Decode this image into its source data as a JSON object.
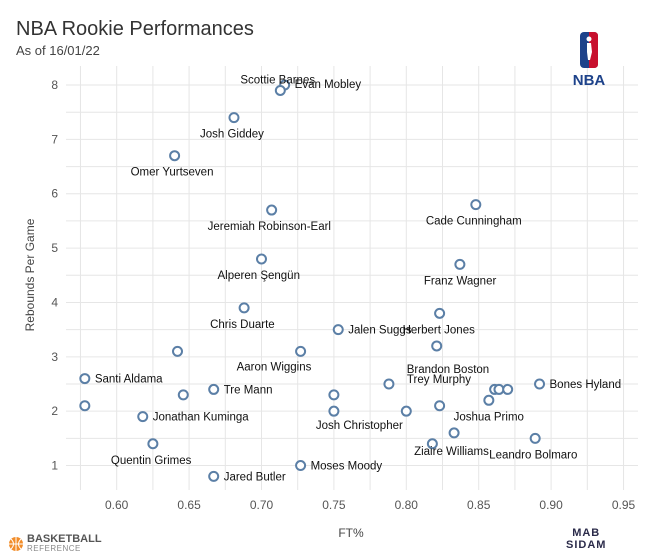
{
  "header": {
    "title": "NBA Rookie Performances",
    "subtitle": "As of 16/01/22"
  },
  "logos": {
    "nba": "NBA",
    "bbref_line1": "BASKETBALL",
    "bbref_line2": "REFERENCE",
    "credit_line1": "MAB",
    "credit_line2": "SIDAM"
  },
  "colors": {
    "marker_stroke": "#5b7fa6",
    "nba_blue": "#1d428a",
    "nba_red": "#c8102e",
    "bbref_orange": "#f28c28"
  },
  "chart_data": {
    "type": "scatter",
    "xlabel": "FT%",
    "ylabel": "Rebounds Per Game",
    "xlim": [
      0.565,
      0.96
    ],
    "ylim": [
      0.55,
      8.35
    ],
    "xticks": [
      "0.60",
      "0.65",
      "0.70",
      "0.75",
      "0.80",
      "0.85",
      "0.90",
      "0.95"
    ],
    "yticks": [
      "1",
      "2",
      "3",
      "4",
      "5",
      "6",
      "7",
      "8"
    ],
    "grid": true,
    "points": [
      {
        "x": 0.716,
        "y": 8.0,
        "label": "Evan Mobley"
      },
      {
        "x": 0.713,
        "y": 7.9,
        "label": "Scottie Barnes"
      },
      {
        "x": 0.681,
        "y": 7.4,
        "label": "Josh Giddey"
      },
      {
        "x": 0.64,
        "y": 6.7,
        "label": "Omer Yurtseven"
      },
      {
        "x": 0.848,
        "y": 5.8,
        "label": "Cade Cunningham"
      },
      {
        "x": 0.707,
        "y": 5.7,
        "label": "Jeremiah Robinson-Earl"
      },
      {
        "x": 0.7,
        "y": 4.8,
        "label": "Alperen Şengün"
      },
      {
        "x": 0.837,
        "y": 4.7,
        "label": "Franz Wagner"
      },
      {
        "x": 0.688,
        "y": 3.9,
        "label": "Chris Duarte"
      },
      {
        "x": 0.823,
        "y": 3.8,
        "label": "Herbert Jones"
      },
      {
        "x": 0.753,
        "y": 3.5,
        "label": "Jalen Suggs"
      },
      {
        "x": 0.821,
        "y": 3.2,
        "label": "Brandon Boston"
      },
      {
        "x": 0.642,
        "y": 3.1,
        "label": ""
      },
      {
        "x": 0.727,
        "y": 3.1,
        "label": "Aaron Wiggins"
      },
      {
        "x": 0.578,
        "y": 2.6,
        "label": "Santi Aldama"
      },
      {
        "x": 0.788,
        "y": 2.5,
        "label": "Trey Murphy"
      },
      {
        "x": 0.892,
        "y": 2.5,
        "label": "Bones Hyland"
      },
      {
        "x": 0.667,
        "y": 2.4,
        "label": "Tre Mann"
      },
      {
        "x": 0.861,
        "y": 2.4,
        "label": ""
      },
      {
        "x": 0.864,
        "y": 2.4,
        "label": ""
      },
      {
        "x": 0.87,
        "y": 2.4,
        "label": ""
      },
      {
        "x": 0.646,
        "y": 2.3,
        "label": ""
      },
      {
        "x": 0.75,
        "y": 2.3,
        "label": ""
      },
      {
        "x": 0.857,
        "y": 2.2,
        "label": ""
      },
      {
        "x": 0.578,
        "y": 2.1,
        "label": ""
      },
      {
        "x": 0.823,
        "y": 2.1,
        "label": "Joshua Primo"
      },
      {
        "x": 0.75,
        "y": 2.0,
        "label": "Josh Christopher"
      },
      {
        "x": 0.8,
        "y": 2.0,
        "label": ""
      },
      {
        "x": 0.618,
        "y": 1.9,
        "label": "Jonathan Kuminga"
      },
      {
        "x": 0.833,
        "y": 1.6,
        "label": "Ziaire Williams"
      },
      {
        "x": 0.889,
        "y": 1.5,
        "label": "Leandro Bolmaro"
      },
      {
        "x": 0.625,
        "y": 1.4,
        "label": "Quentin Grimes"
      },
      {
        "x": 0.818,
        "y": 1.4,
        "label": ""
      },
      {
        "x": 0.727,
        "y": 1.0,
        "label": "Moses Moody"
      },
      {
        "x": 0.667,
        "y": 0.8,
        "label": "Jared Butler"
      }
    ]
  }
}
